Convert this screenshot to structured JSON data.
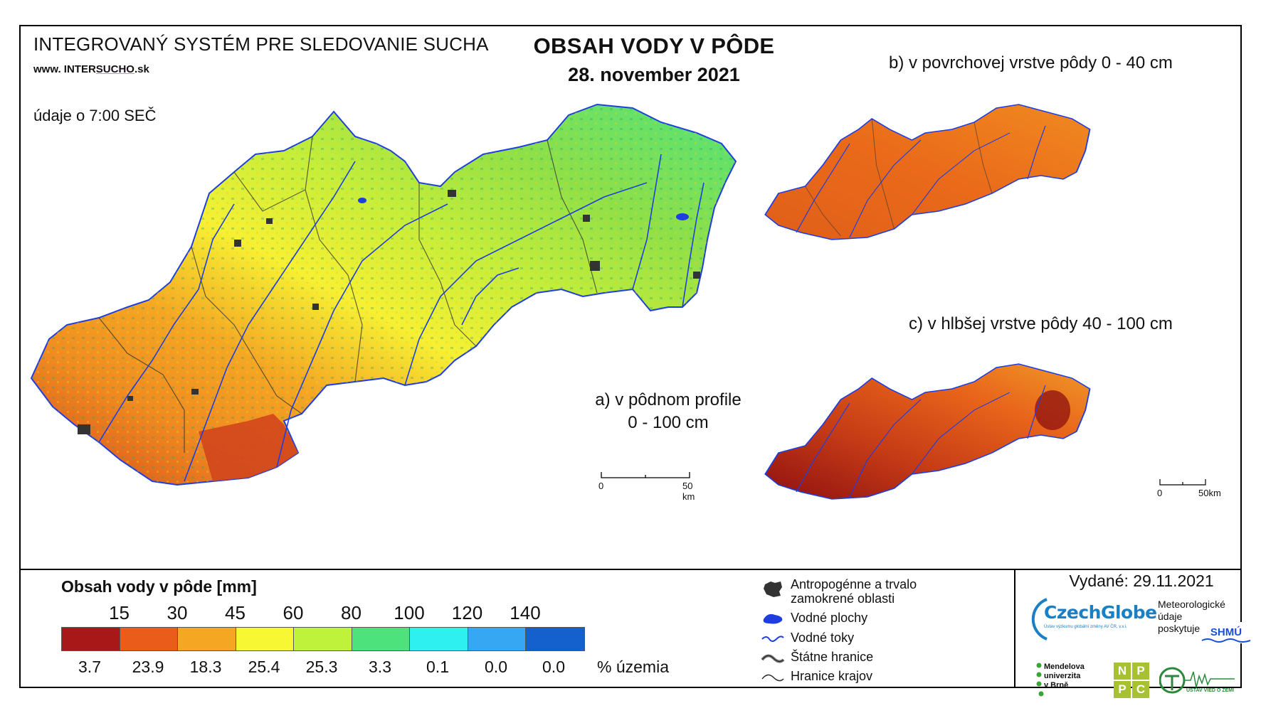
{
  "header": {
    "system_title": "INTEGROVANÝ SYSTÉM PRE SLEDOVANIE SUCHA",
    "url_prefix": "www. INTER",
    "url_mid": "SUCHO",
    "url_suffix": ".sk",
    "time_note": "údaje o 7:00 SEČ",
    "title": "OBSAH VODY V PÔDE",
    "date": "28. november 2021"
  },
  "maps": {
    "a_label_line1": "a) v pôdnom profile",
    "a_label_line2": "0 - 100 cm",
    "b_label": "b) v povrchovej vrstve pôdy 0 - 40 cm",
    "c_label": "c) v hlbšej vrstve pôdy 40 - 100 cm",
    "scale_zero": "0",
    "scale_main": "50 km",
    "scale_small": "50km"
  },
  "legend": {
    "title": "Obsah vody v pôde  [mm]",
    "ticks": [
      "15",
      "30",
      "45",
      "60",
      "80",
      "100",
      "120",
      "140"
    ],
    "colors": [
      "#a81818",
      "#ea5c1a",
      "#f5a623",
      "#f7f733",
      "#bff23a",
      "#4de27c",
      "#2ff0f0",
      "#36a7f2",
      "#1460cc"
    ],
    "percentages": [
      "3.7",
      "23.9",
      "18.3",
      "25.4",
      "25.3",
      "3.3",
      "0.1",
      "0.0",
      "0.0"
    ],
    "unit": "% územia"
  },
  "symbols": {
    "anthro_line1": "Antropogénne a trvalo",
    "anthro_line2": "zamokrené oblasti",
    "water_areas": "Vodné plochy",
    "streams": "Vodné toky",
    "state_border": "Štátne hranice",
    "region_border": "Hranice krajov"
  },
  "footer": {
    "issued": "Vydané: 29.11.2021",
    "czechglobe": "CzechGlobe",
    "czechglobe_sub": "Ústav výzkumu globální změny AV ČR, v.v.i.",
    "meteo_line1": "Meteorologické",
    "meteo_line2": "údaje",
    "meteo_line3": "poskytuje:",
    "shmu": "SHMÚ",
    "mendel_line1": "Mendelova",
    "mendel_line2": "univerzita",
    "mendel_line3": "v Brně",
    "nppc": [
      "N",
      "P",
      "P",
      "C"
    ],
    "uvz": "ÚSTAV VIED O ZEMI"
  }
}
